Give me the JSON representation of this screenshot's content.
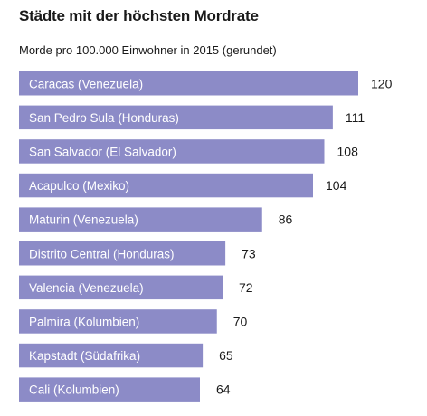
{
  "chart_data": {
    "type": "bar",
    "orientation": "horizontal",
    "title": "Städte mit der höchsten Mordrate",
    "subtitle": "Morde pro 100.000 Einwohner in 2015 (gerundet)",
    "categories": [
      "Caracas (Venezuela)",
      "San Pedro Sula (Honduras)",
      "San Salvador (El Salvador)",
      "Acapulco (Mexiko)",
      "Maturin (Venezuela)",
      "Distrito Central (Honduras)",
      "Valencia (Venezuela)",
      "Palmira (Kolumbien)",
      "Kapstadt (Südafrika)",
      "Cali (Kolumbien)"
    ],
    "values": [
      120,
      111,
      108,
      104,
      86,
      73,
      72,
      70,
      65,
      64
    ],
    "value_labels": [
      "120",
      "111",
      "108",
      "104",
      "86",
      "73",
      "72",
      "70",
      "65",
      "64"
    ],
    "bar_color": "#8c8bc7",
    "grid": false,
    "legend": "none"
  }
}
